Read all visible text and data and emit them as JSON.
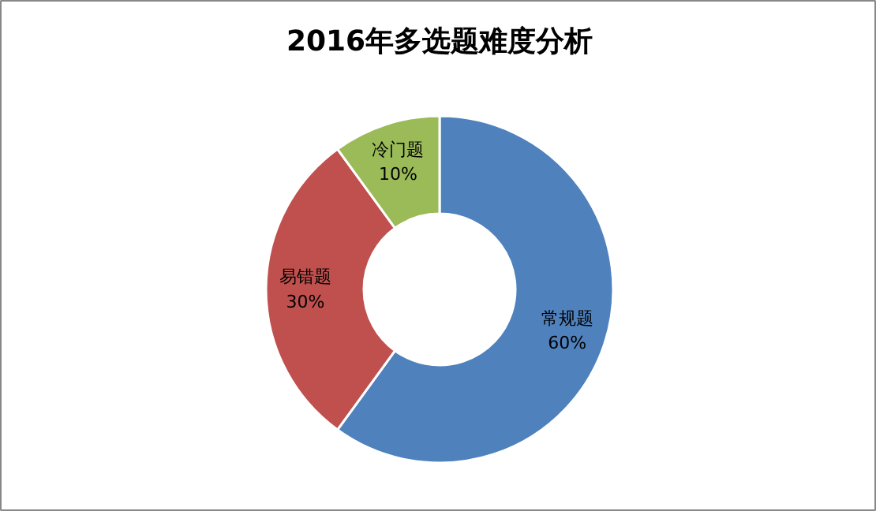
{
  "chart_data": {
    "type": "donut",
    "title": "2016年多选题难度分析",
    "categories": [
      "常规题",
      "易错题",
      "冷门题"
    ],
    "values": [
      60,
      30,
      10
    ],
    "colors": [
      "#4f81bd",
      "#c0504d",
      "#9bbb59"
    ],
    "value_labels": [
      "60%",
      "30%",
      "10%"
    ]
  }
}
